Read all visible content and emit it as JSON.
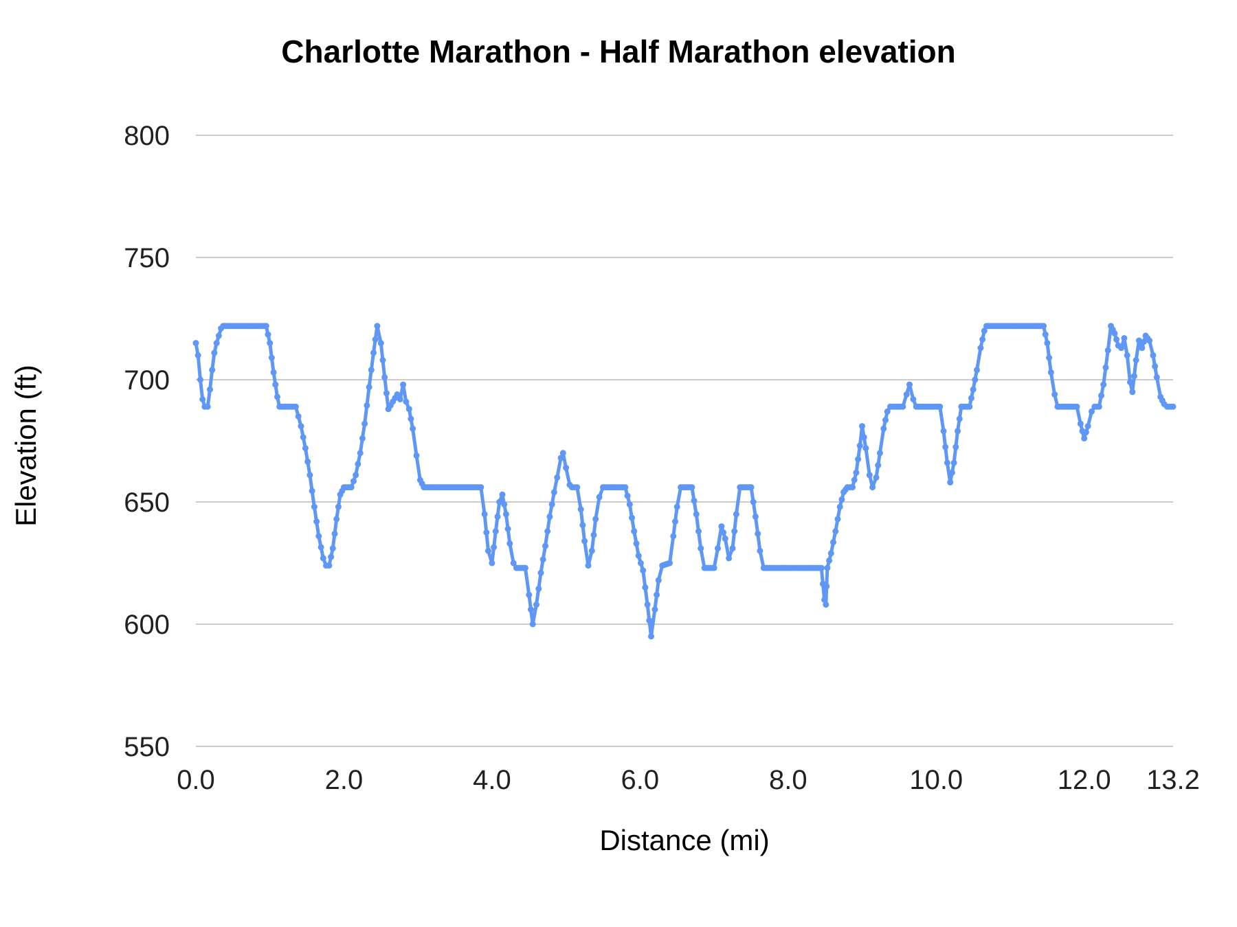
{
  "chart_data": {
    "type": "line",
    "title": "Charlotte Marathon - Half Marathon elevation",
    "xlabel": "Distance (mi)",
    "ylabel": "Elevation (ft)",
    "xlim": [
      0,
      13.2
    ],
    "ylim": [
      550,
      800
    ],
    "yticks": [
      550,
      600,
      650,
      700,
      750,
      800
    ],
    "ytick_labels": [
      "550",
      "600",
      "650",
      "700",
      "750",
      "800"
    ],
    "xticks": [
      0,
      2,
      4,
      6,
      8,
      10,
      12,
      13.2
    ],
    "xtick_labels": [
      "0.0",
      "2.0",
      "4.0",
      "6.0",
      "8.0",
      "10.0",
      "12.0",
      "13.2"
    ],
    "grid": "horizontal-only",
    "legend": "none",
    "line_color": "#5e97f6",
    "grid_color": "#cccccc",
    "series": [
      {
        "name": "elevation",
        "points": [
          [
            0.0,
            715
          ],
          [
            0.03,
            710
          ],
          [
            0.06,
            700
          ],
          [
            0.09,
            692
          ],
          [
            0.12,
            689
          ],
          [
            0.16,
            689
          ],
          [
            0.19,
            696
          ],
          [
            0.22,
            704
          ],
          [
            0.25,
            711
          ],
          [
            0.28,
            715
          ],
          [
            0.31,
            718
          ],
          [
            0.34,
            721
          ],
          [
            0.37,
            722
          ],
          [
            0.95,
            722
          ],
          [
            1.0,
            715
          ],
          [
            1.05,
            703
          ],
          [
            1.1,
            693
          ],
          [
            1.13,
            689
          ],
          [
            1.35,
            689
          ],
          [
            1.42,
            681
          ],
          [
            1.48,
            672
          ],
          [
            1.54,
            661
          ],
          [
            1.6,
            648
          ],
          [
            1.66,
            636
          ],
          [
            1.72,
            627
          ],
          [
            1.76,
            624
          ],
          [
            1.8,
            624
          ],
          [
            1.85,
            631
          ],
          [
            1.9,
            643
          ],
          [
            1.95,
            653
          ],
          [
            2.0,
            656
          ],
          [
            2.1,
            656
          ],
          [
            2.16,
            661
          ],
          [
            2.22,
            670
          ],
          [
            2.28,
            682
          ],
          [
            2.34,
            697
          ],
          [
            2.4,
            711
          ],
          [
            2.45,
            722
          ],
          [
            2.5,
            715
          ],
          [
            2.55,
            701
          ],
          [
            2.6,
            688
          ],
          [
            2.66,
            691
          ],
          [
            2.72,
            694
          ],
          [
            2.76,
            692
          ],
          [
            2.8,
            698
          ],
          [
            2.84,
            691
          ],
          [
            2.88,
            688
          ],
          [
            2.93,
            680
          ],
          [
            2.98,
            669
          ],
          [
            3.03,
            659
          ],
          [
            3.08,
            656
          ],
          [
            3.85,
            656
          ],
          [
            3.9,
            645
          ],
          [
            3.95,
            630
          ],
          [
            4.0,
            625
          ],
          [
            4.05,
            638
          ],
          [
            4.1,
            650
          ],
          [
            4.14,
            653
          ],
          [
            4.19,
            645
          ],
          [
            4.24,
            633
          ],
          [
            4.29,
            625
          ],
          [
            4.33,
            623
          ],
          [
            4.45,
            623
          ],
          [
            4.5,
            612
          ],
          [
            4.55,
            600
          ],
          [
            4.6,
            608
          ],
          [
            4.66,
            621
          ],
          [
            4.72,
            632
          ],
          [
            4.78,
            644
          ],
          [
            4.84,
            654
          ],
          [
            4.88,
            660
          ],
          [
            4.93,
            668
          ],
          [
            4.96,
            670
          ],
          [
            5.0,
            664
          ],
          [
            5.05,
            657
          ],
          [
            5.08,
            656
          ],
          [
            5.15,
            656
          ],
          [
            5.2,
            647
          ],
          [
            5.25,
            634
          ],
          [
            5.3,
            624
          ],
          [
            5.35,
            630
          ],
          [
            5.4,
            643
          ],
          [
            5.45,
            652
          ],
          [
            5.5,
            656
          ],
          [
            5.8,
            656
          ],
          [
            5.86,
            649
          ],
          [
            5.92,
            638
          ],
          [
            5.98,
            628
          ],
          [
            6.04,
            622
          ],
          [
            6.1,
            608
          ],
          [
            6.15,
            595
          ],
          [
            6.2,
            606
          ],
          [
            6.25,
            618
          ],
          [
            6.3,
            624
          ],
          [
            6.4,
            625
          ],
          [
            6.45,
            636
          ],
          [
            6.5,
            648
          ],
          [
            6.55,
            656
          ],
          [
            6.7,
            656
          ],
          [
            6.76,
            645
          ],
          [
            6.82,
            631
          ],
          [
            6.87,
            623
          ],
          [
            7.0,
            623
          ],
          [
            7.05,
            631
          ],
          [
            7.1,
            640
          ],
          [
            7.15,
            635
          ],
          [
            7.2,
            627
          ],
          [
            7.25,
            631
          ],
          [
            7.3,
            645
          ],
          [
            7.35,
            656
          ],
          [
            7.5,
            656
          ],
          [
            7.56,
            644
          ],
          [
            7.62,
            630
          ],
          [
            7.67,
            623
          ],
          [
            8.45,
            623
          ],
          [
            8.49,
            610
          ],
          [
            8.51,
            608
          ],
          [
            8.53,
            623
          ],
          [
            8.58,
            629
          ],
          [
            8.64,
            638
          ],
          [
            8.7,
            648
          ],
          [
            8.75,
            654
          ],
          [
            8.8,
            656
          ],
          [
            8.87,
            656
          ],
          [
            8.92,
            662
          ],
          [
            8.97,
            673
          ],
          [
            9.0,
            681
          ],
          [
            9.05,
            672
          ],
          [
            9.1,
            661
          ],
          [
            9.14,
            656
          ],
          [
            9.19,
            660
          ],
          [
            9.24,
            670
          ],
          [
            9.29,
            680
          ],
          [
            9.34,
            687
          ],
          [
            9.38,
            689
          ],
          [
            9.55,
            689
          ],
          [
            9.6,
            694
          ],
          [
            9.64,
            698
          ],
          [
            9.69,
            692
          ],
          [
            9.73,
            689
          ],
          [
            10.05,
            689
          ],
          [
            10.1,
            679
          ],
          [
            10.15,
            666
          ],
          [
            10.19,
            658
          ],
          [
            10.24,
            666
          ],
          [
            10.29,
            679
          ],
          [
            10.34,
            689
          ],
          [
            10.45,
            689
          ],
          [
            10.5,
            696
          ],
          [
            10.55,
            704
          ],
          [
            10.6,
            713
          ],
          [
            10.65,
            720
          ],
          [
            10.68,
            722
          ],
          [
            11.45,
            722
          ],
          [
            11.5,
            715
          ],
          [
            11.55,
            703
          ],
          [
            11.6,
            694
          ],
          [
            11.64,
            689
          ],
          [
            11.9,
            689
          ],
          [
            11.95,
            682
          ],
          [
            12.0,
            676
          ],
          [
            12.05,
            681
          ],
          [
            12.1,
            687
          ],
          [
            12.14,
            689
          ],
          [
            12.2,
            689
          ],
          [
            12.26,
            698
          ],
          [
            12.32,
            712
          ],
          [
            12.36,
            722
          ],
          [
            12.41,
            719
          ],
          [
            12.46,
            714
          ],
          [
            12.5,
            713
          ],
          [
            12.54,
            717
          ],
          [
            12.58,
            710
          ],
          [
            12.62,
            699
          ],
          [
            12.65,
            695
          ],
          [
            12.7,
            708
          ],
          [
            12.74,
            716
          ],
          [
            12.78,
            713
          ],
          [
            12.83,
            718
          ],
          [
            12.88,
            716
          ],
          [
            12.93,
            710
          ],
          [
            12.98,
            701
          ],
          [
            13.03,
            693
          ],
          [
            13.08,
            690
          ],
          [
            13.12,
            689
          ],
          [
            13.2,
            689
          ]
        ]
      }
    ]
  }
}
